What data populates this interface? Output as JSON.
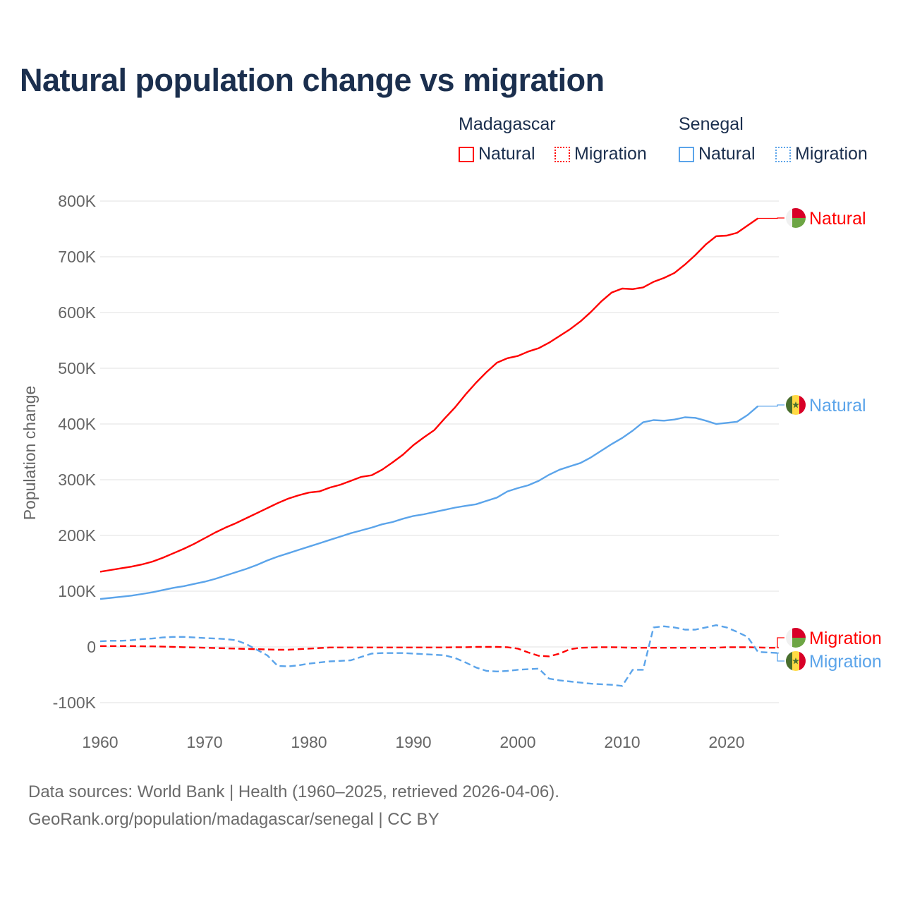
{
  "title": "Natural population change vs migration",
  "legend": {
    "groups": [
      {
        "name": "Madagascar",
        "items": [
          "Natural",
          "Migration"
        ],
        "color": "#ff0000"
      },
      {
        "name": "Senegal",
        "items": [
          "Natural",
          "Migration"
        ],
        "color": "#5ba4ea"
      }
    ]
  },
  "footer": {
    "line1": "Data sources: World Bank | Health (1960–2025, retrieved 2026-04-06).",
    "line2": "GeoRank.org/population/madagascar/senegal | CC BY"
  },
  "chart_data": {
    "type": "line",
    "title": "Natural population change vs migration",
    "xlabel": "",
    "ylabel": "Population change",
    "xlim": [
      1960,
      2025
    ],
    "ylim": [
      -100000,
      800000
    ],
    "x_ticks": [
      1960,
      1970,
      1980,
      1990,
      2000,
      2010,
      2020
    ],
    "y_ticks": [
      -100000,
      0,
      100000,
      200000,
      300000,
      400000,
      500000,
      600000,
      700000,
      800000
    ],
    "y_tick_labels": [
      "-100K",
      "0",
      "100K",
      "200K",
      "300K",
      "400K",
      "500K",
      "600K",
      "700K",
      "800K"
    ],
    "grid": true,
    "series": [
      {
        "name": "Madagascar Natural",
        "label": "Natural",
        "color": "#ff0000",
        "style": "solid",
        "start": 1960,
        "values": [
          135000,
          138000,
          141000,
          144000,
          148000,
          153000,
          160000,
          168000,
          176000,
          185000,
          195000,
          205000,
          214000,
          222000,
          231000,
          240000,
          249000,
          258000,
          266000,
          272000,
          277000,
          279000,
          286000,
          291000,
          298000,
          305000,
          308000,
          318000,
          331000,
          345000,
          362000,
          376000,
          389000,
          410000,
          430000,
          453000,
          474000,
          493000,
          510000,
          518000,
          522000,
          530000,
          536000,
          546000,
          558000,
          570000,
          584000,
          601000,
          620000,
          636000,
          643000,
          642000,
          645000,
          655000,
          662000,
          671000,
          686000,
          703000,
          722000,
          737000,
          738000,
          743000,
          756000,
          769000
        ]
      },
      {
        "name": "Madagascar Migration",
        "label": "Migration",
        "color": "#ff0000",
        "style": "dashed",
        "start": 1960,
        "values": [
          1500,
          1500,
          1500,
          1500,
          1200,
          1000,
          500,
          0,
          -500,
          -1000,
          -1500,
          -2000,
          -2500,
          -3000,
          -3500,
          -4000,
          -4500,
          -5000,
          -5000,
          -4000,
          -3000,
          -2000,
          -1000,
          -1000,
          -1000,
          -1000,
          -1000,
          -1000,
          -1000,
          -1000,
          -1000,
          -1000,
          -1000,
          -1000,
          -500,
          -500,
          0,
          0,
          0,
          -500,
          -3000,
          -10000,
          -16000,
          -17000,
          -12000,
          -4000,
          -1500,
          -1000,
          -500,
          -500,
          -1000,
          -1500,
          -1500,
          -1500,
          -1500,
          -1500,
          -1500,
          -1500,
          -1500,
          -1500,
          -500,
          -500,
          -500,
          -1000,
          -1500,
          -1500
        ]
      },
      {
        "name": "Senegal Natural",
        "label": "Natural",
        "color": "#5ba4ea",
        "style": "solid",
        "start": 1960,
        "values": [
          86000,
          88000,
          90000,
          92000,
          95000,
          98000,
          102000,
          106000,
          109000,
          113000,
          117000,
          122000,
          128000,
          134000,
          140000,
          147000,
          155000,
          162000,
          168000,
          174000,
          180000,
          186000,
          192000,
          198000,
          204000,
          209000,
          214000,
          220000,
          224000,
          230000,
          235000,
          238000,
          242000,
          246000,
          250000,
          253000,
          256000,
          262000,
          268000,
          279000,
          285000,
          290000,
          298000,
          309000,
          318000,
          324000,
          330000,
          340000,
          352000,
          364000,
          375000,
          388000,
          403000,
          407000,
          406000,
          408000,
          412000,
          411000,
          406000,
          400000,
          402000,
          404000,
          416000,
          432000
        ]
      },
      {
        "name": "Senegal Migration",
        "label": "Migration",
        "color": "#5ba4ea",
        "style": "dashed",
        "start": 1960,
        "values": [
          10000,
          11000,
          11000,
          12000,
          14000,
          15000,
          17000,
          18000,
          18000,
          17000,
          16000,
          15000,
          14000,
          12000,
          5000,
          -5000,
          -15000,
          -34000,
          -35000,
          -33000,
          -30000,
          -28000,
          -26000,
          -25000,
          -24000,
          -18000,
          -12000,
          -11000,
          -11000,
          -11000,
          -12000,
          -13000,
          -14000,
          -15000,
          -20000,
          -28000,
          -37000,
          -43000,
          -44000,
          -43000,
          -41000,
          -40000,
          -39000,
          -57000,
          -60000,
          -62000,
          -64000,
          -66000,
          -67000,
          -68000,
          -70000,
          -41000,
          -41000,
          35000,
          37000,
          35000,
          31000,
          31000,
          35000,
          39000,
          35000,
          27000,
          18000,
          -9000,
          -10000,
          -11000
        ]
      }
    ]
  }
}
